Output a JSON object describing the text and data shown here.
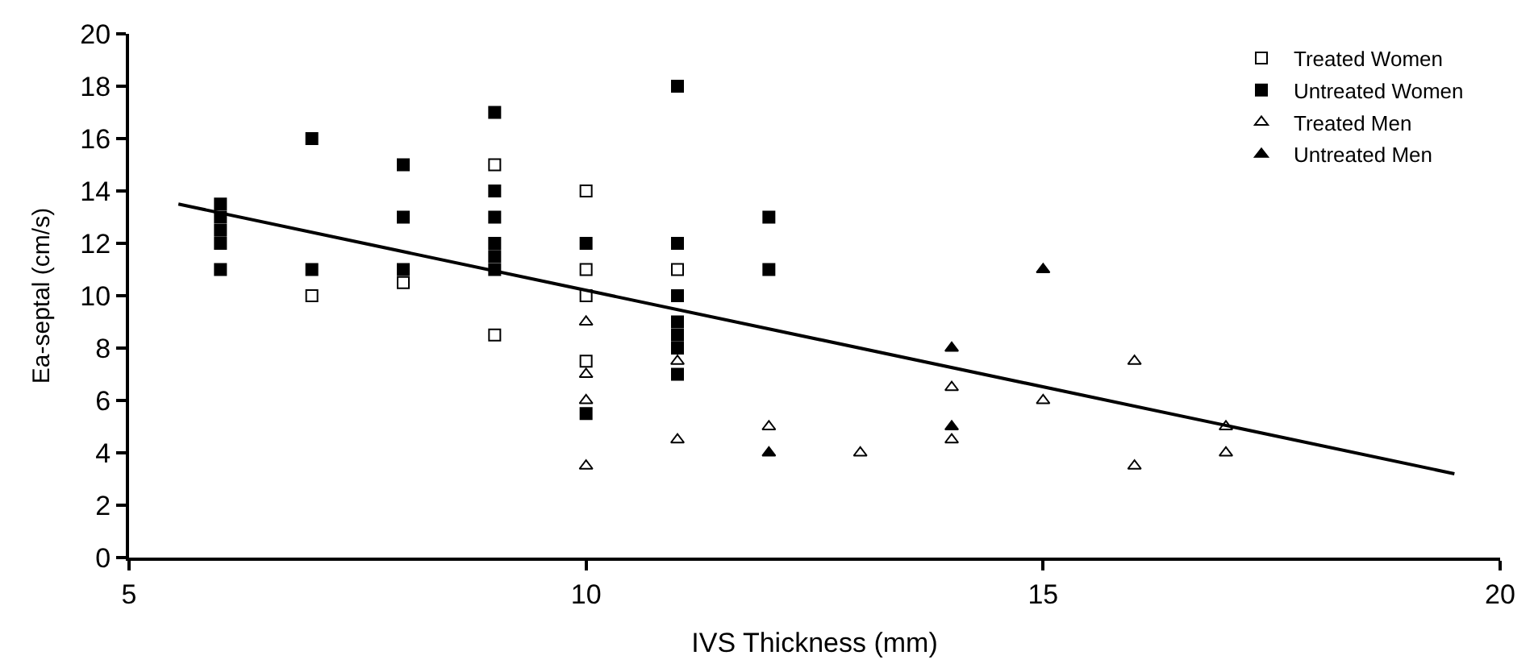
{
  "chart_data": {
    "type": "scatter",
    "xlabel": "IVS Thickness (mm)",
    "ylabel": "Ea-septal (cm/s)",
    "xlim": [
      5,
      20
    ],
    "xticks": [
      5,
      10,
      15,
      20
    ],
    "ylim": [
      0,
      20
    ],
    "yticks": [
      0,
      2,
      4,
      6,
      8,
      10,
      12,
      14,
      16,
      18,
      20
    ],
    "legend": "top right",
    "series": [
      {
        "name": "Treated Women",
        "color": "#000000",
        "marker": "square-open",
        "x": [
          7,
          8,
          9,
          9,
          10,
          10,
          10,
          10,
          11
        ],
        "values": [
          10,
          10.5,
          15,
          8.5,
          14,
          11,
          10,
          7.5,
          11
        ]
      },
      {
        "name": "Untreated Women",
        "color": "#000000",
        "marker": "square",
        "x": [
          6,
          6,
          6,
          6,
          6,
          7,
          7,
          8,
          8,
          8,
          9,
          9,
          9,
          9,
          9,
          9,
          10,
          10,
          11,
          11,
          11,
          11,
          11,
          11,
          11,
          12,
          12
        ],
        "values": [
          13.5,
          13,
          12.5,
          12,
          11,
          16,
          11,
          15,
          13,
          11,
          17,
          14,
          13,
          12,
          11.5,
          11,
          12,
          5.5,
          18,
          12,
          10,
          9,
          8.5,
          8,
          7,
          13,
          11
        ]
      },
      {
        "name": "Treated Men",
        "color": "#000000",
        "marker": "triangle-open",
        "x": [
          10,
          10,
          10,
          10,
          11,
          11,
          12,
          13,
          14,
          14,
          15,
          16,
          16,
          17,
          17
        ],
        "values": [
          9,
          7,
          6,
          3.5,
          7.5,
          4.5,
          5,
          4,
          6.5,
          4.5,
          6,
          7.5,
          3.5,
          5,
          4
        ]
      },
      {
        "name": "Untreated Men",
        "color": "#000000",
        "marker": "triangle",
        "x": [
          12,
          14,
          14,
          15
        ],
        "values": [
          4,
          8,
          5,
          11
        ]
      },
      {
        "type": "line",
        "color": "#000000",
        "marker": "none",
        "x": [
          5.54,
          19.5
        ],
        "values": [
          13.5,
          3.2
        ]
      }
    ]
  }
}
